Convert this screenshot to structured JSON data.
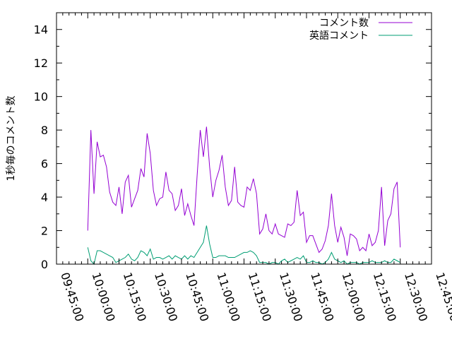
{
  "chart_data": {
    "type": "line",
    "title": "",
    "xlabel": "",
    "ylabel": "1秒毎のコメント数",
    "x_ticks": [
      "09:45:00",
      "10:00:00",
      "10:15:00",
      "10:30:00",
      "10:45:00",
      "11:00:00",
      "11:15:00",
      "11:30:00",
      "11:45:00",
      "12:00:00",
      "12:15:00",
      "12:30:00",
      "12:45:00"
    ],
    "xlim": [
      "09:45:00",
      "12:45:00"
    ],
    "ylim": [
      0,
      15
    ],
    "y_ticks": [
      0,
      2,
      4,
      6,
      8,
      10,
      12,
      14
    ],
    "grid": false,
    "legend_position": "top-right",
    "series": [
      {
        "name": "コメント数",
        "color": "#9400d3",
        "points": [
          [
            "10:00:00",
            2.0
          ],
          [
            "10:01:30",
            8.0
          ],
          [
            "10:03:00",
            4.2
          ],
          [
            "10:04:30",
            7.3
          ],
          [
            "10:06:00",
            6.4
          ],
          [
            "10:07:30",
            6.5
          ],
          [
            "10:09:00",
            5.8
          ],
          [
            "10:10:30",
            4.3
          ],
          [
            "10:12:00",
            3.7
          ],
          [
            "10:13:30",
            3.5
          ],
          [
            "10:15:00",
            4.6
          ],
          [
            "10:16:30",
            3.0
          ],
          [
            "10:18:00",
            4.9
          ],
          [
            "10:19:30",
            5.3
          ],
          [
            "10:21:00",
            3.4
          ],
          [
            "10:22:30",
            3.9
          ],
          [
            "10:24:00",
            4.4
          ],
          [
            "10:25:30",
            5.7
          ],
          [
            "10:27:00",
            5.2
          ],
          [
            "10:28:30",
            7.8
          ],
          [
            "10:30:00",
            6.6
          ],
          [
            "10:31:30",
            4.4
          ],
          [
            "10:33:00",
            3.5
          ],
          [
            "10:34:30",
            3.9
          ],
          [
            "10:36:00",
            4.0
          ],
          [
            "10:37:30",
            5.5
          ],
          [
            "10:39:00",
            4.4
          ],
          [
            "10:40:30",
            4.2
          ],
          [
            "10:42:00",
            3.2
          ],
          [
            "10:43:30",
            3.5
          ],
          [
            "10:45:00",
            4.5
          ],
          [
            "10:46:30",
            2.9
          ],
          [
            "10:48:00",
            3.6
          ],
          [
            "10:49:30",
            2.9
          ],
          [
            "10:51:00",
            2.3
          ],
          [
            "10:52:30",
            5.3
          ],
          [
            "10:54:00",
            8.0
          ],
          [
            "10:55:30",
            6.4
          ],
          [
            "10:57:00",
            8.2
          ],
          [
            "10:58:30",
            5.8
          ],
          [
            "11:00:00",
            4.0
          ],
          [
            "11:01:30",
            5.0
          ],
          [
            "11:03:00",
            5.6
          ],
          [
            "11:04:30",
            6.5
          ],
          [
            "11:06:00",
            4.6
          ],
          [
            "11:07:30",
            3.5
          ],
          [
            "11:09:00",
            3.8
          ],
          [
            "11:10:30",
            5.8
          ],
          [
            "11:12:00",
            3.7
          ],
          [
            "11:13:30",
            3.5
          ],
          [
            "11:15:00",
            3.4
          ],
          [
            "11:16:30",
            4.6
          ],
          [
            "11:18:00",
            4.4
          ],
          [
            "11:19:30",
            5.1
          ],
          [
            "11:21:00",
            4.2
          ],
          [
            "11:22:30",
            1.8
          ],
          [
            "11:24:00",
            2.1
          ],
          [
            "11:25:30",
            3.0
          ],
          [
            "11:27:00",
            2.0
          ],
          [
            "11:28:30",
            1.8
          ],
          [
            "11:30:00",
            2.4
          ],
          [
            "11:31:30",
            1.8
          ],
          [
            "11:33:00",
            1.7
          ],
          [
            "11:34:30",
            1.6
          ],
          [
            "11:36:00",
            2.4
          ],
          [
            "11:37:30",
            2.3
          ],
          [
            "11:39:00",
            2.5
          ],
          [
            "11:40:30",
            4.4
          ],
          [
            "11:42:00",
            2.9
          ],
          [
            "11:43:30",
            3.1
          ],
          [
            "11:45:00",
            1.3
          ],
          [
            "11:46:30",
            1.7
          ],
          [
            "11:48:00",
            1.7
          ],
          [
            "11:49:30",
            1.2
          ],
          [
            "11:51:00",
            0.7
          ],
          [
            "11:52:30",
            0.9
          ],
          [
            "11:54:00",
            1.4
          ],
          [
            "11:55:30",
            2.3
          ],
          [
            "11:57:00",
            4.2
          ],
          [
            "11:58:30",
            2.3
          ],
          [
            "12:00:00",
            1.3
          ],
          [
            "12:01:30",
            2.2
          ],
          [
            "12:03:00",
            1.6
          ],
          [
            "12:04:30",
            0.5
          ],
          [
            "12:06:00",
            1.8
          ],
          [
            "12:07:30",
            1.7
          ],
          [
            "12:09:00",
            1.5
          ],
          [
            "12:10:30",
            0.8
          ],
          [
            "12:12:00",
            1.0
          ],
          [
            "12:13:30",
            0.8
          ],
          [
            "12:15:00",
            1.8
          ],
          [
            "12:16:30",
            1.1
          ],
          [
            "12:18:00",
            1.3
          ],
          [
            "12:19:30",
            2.0
          ],
          [
            "12:21:00",
            4.6
          ],
          [
            "12:22:30",
            1.1
          ],
          [
            "12:24:00",
            2.6
          ],
          [
            "12:25:30",
            3.0
          ],
          [
            "12:27:00",
            4.5
          ],
          [
            "12:28:30",
            4.9
          ],
          [
            "12:30:00",
            1.0
          ]
        ]
      },
      {
        "name": "英語コメント",
        "color": "#009e73",
        "points": [
          [
            "10:00:00",
            1.0
          ],
          [
            "10:01:30",
            0.2
          ],
          [
            "10:03:00",
            0.0
          ],
          [
            "10:04:30",
            0.8
          ],
          [
            "10:06:00",
            0.8
          ],
          [
            "10:07:30",
            0.7
          ],
          [
            "10:09:00",
            0.6
          ],
          [
            "10:10:30",
            0.5
          ],
          [
            "10:12:00",
            0.4
          ],
          [
            "10:13:30",
            0.1
          ],
          [
            "10:15:00",
            0.2
          ],
          [
            "10:16:30",
            0.3
          ],
          [
            "10:18:00",
            0.4
          ],
          [
            "10:19:30",
            0.6
          ],
          [
            "10:21:00",
            0.3
          ],
          [
            "10:22:30",
            0.2
          ],
          [
            "10:24:00",
            0.4
          ],
          [
            "10:25:30",
            0.8
          ],
          [
            "10:27:00",
            0.7
          ],
          [
            "10:28:30",
            0.5
          ],
          [
            "10:30:00",
            0.9
          ],
          [
            "10:31:30",
            0.3
          ],
          [
            "10:33:00",
            0.4
          ],
          [
            "10:34:30",
            0.4
          ],
          [
            "10:36:00",
            0.3
          ],
          [
            "10:37:30",
            0.4
          ],
          [
            "10:39:00",
            0.5
          ],
          [
            "10:40:30",
            0.3
          ],
          [
            "10:42:00",
            0.5
          ],
          [
            "10:43:30",
            0.4
          ],
          [
            "10:45:00",
            0.3
          ],
          [
            "10:46:30",
            0.5
          ],
          [
            "10:48:00",
            0.3
          ],
          [
            "10:49:30",
            0.5
          ],
          [
            "10:51:00",
            0.4
          ],
          [
            "10:52:30",
            0.7
          ],
          [
            "10:54:00",
            1.0
          ],
          [
            "10:55:30",
            1.3
          ],
          [
            "10:57:00",
            2.3
          ],
          [
            "10:58:30",
            1.2
          ],
          [
            "11:00:00",
            0.4
          ],
          [
            "11:01:30",
            0.4
          ],
          [
            "11:03:00",
            0.5
          ],
          [
            "11:04:30",
            0.5
          ],
          [
            "11:06:00",
            0.5
          ],
          [
            "11:07:30",
            0.4
          ],
          [
            "11:09:00",
            0.4
          ],
          [
            "11:10:30",
            0.4
          ],
          [
            "11:12:00",
            0.5
          ],
          [
            "11:13:30",
            0.6
          ],
          [
            "11:15:00",
            0.7
          ],
          [
            "11:16:30",
            0.7
          ],
          [
            "11:18:00",
            0.8
          ],
          [
            "11:19:30",
            0.7
          ],
          [
            "11:21:00",
            0.5
          ],
          [
            "11:22:30",
            0.1
          ],
          [
            "11:24:00",
            0.1
          ],
          [
            "11:25:30",
            0.1
          ],
          [
            "11:27:00",
            0.0
          ],
          [
            "11:28:30",
            0.1
          ],
          [
            "11:30:00",
            0.1
          ],
          [
            "11:31:30",
            0.0
          ],
          [
            "11:33:00",
            0.2
          ],
          [
            "11:34:30",
            0.3
          ],
          [
            "11:36:00",
            0.1
          ],
          [
            "11:37:30",
            0.2
          ],
          [
            "11:39:00",
            0.3
          ],
          [
            "11:40:30",
            0.4
          ],
          [
            "11:42:00",
            0.3
          ],
          [
            "11:43:30",
            0.5
          ],
          [
            "11:45:00",
            0.1
          ],
          [
            "11:46:30",
            0.1
          ],
          [
            "11:48:00",
            0.2
          ],
          [
            "11:49:30",
            0.1
          ],
          [
            "11:51:00",
            0.1
          ],
          [
            "11:52:30",
            0.0
          ],
          [
            "11:54:00",
            0.1
          ],
          [
            "11:55:30",
            0.3
          ],
          [
            "11:57:00",
            0.7
          ],
          [
            "11:58:30",
            0.3
          ],
          [
            "12:00:00",
            0.2
          ],
          [
            "12:01:30",
            0.1
          ],
          [
            "12:03:00",
            0.2
          ],
          [
            "12:04:30",
            0.0
          ],
          [
            "12:06:00",
            0.1
          ],
          [
            "12:07:30",
            0.1
          ],
          [
            "12:09:00",
            0.1
          ],
          [
            "12:10:30",
            0.0
          ],
          [
            "12:12:00",
            0.1
          ],
          [
            "12:13:30",
            0.1
          ],
          [
            "12:15:00",
            0.1
          ],
          [
            "12:16:30",
            0.2
          ],
          [
            "12:18:00",
            0.1
          ],
          [
            "12:19:30",
            0.1
          ],
          [
            "12:21:00",
            0.1
          ],
          [
            "12:22:30",
            0.2
          ],
          [
            "12:24:00",
            0.1
          ],
          [
            "12:25:30",
            0.1
          ],
          [
            "12:27:00",
            0.3
          ],
          [
            "12:28:30",
            0.2
          ],
          [
            "12:30:00",
            0.1
          ]
        ]
      }
    ]
  }
}
